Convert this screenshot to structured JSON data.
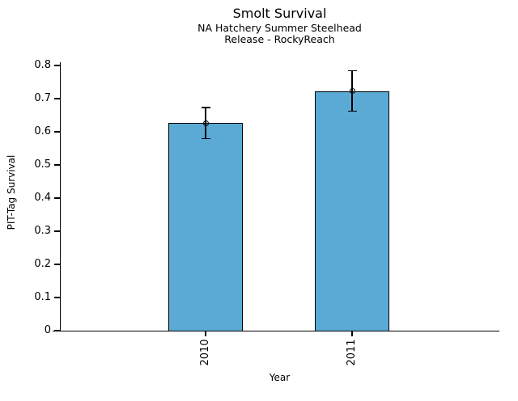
{
  "chart_data": {
    "type": "bar",
    "title": "Smolt Survival",
    "subtitle_line1": "NA Hatchery Summer Steelhead",
    "subtitle_line2": "Release - RockyReach",
    "xlabel": "Year",
    "ylabel": "PIT-Tag Survival",
    "categories": [
      "2010",
      "2011"
    ],
    "values": [
      0.626,
      0.722
    ],
    "error_low": [
      0.579,
      0.662
    ],
    "error_high": [
      0.673,
      0.784
    ],
    "marker": "open-circle",
    "ytick_labels": [
      "0",
      "0.1",
      "0.2",
      "0.3",
      "0.4",
      "0.5",
      "0.6",
      "0.7",
      "0.8"
    ],
    "ytick_values": [
      0,
      0.1,
      0.2,
      0.3,
      0.4,
      0.5,
      0.6,
      0.7,
      0.8
    ],
    "ylim": [
      0,
      0.81
    ],
    "grid": false,
    "legend": "none",
    "bar_color": "#5aaad5",
    "bar_edge_color": "#000000",
    "error_color": "#000000",
    "text_color": "#000000",
    "background_color": "#ffffff"
  }
}
